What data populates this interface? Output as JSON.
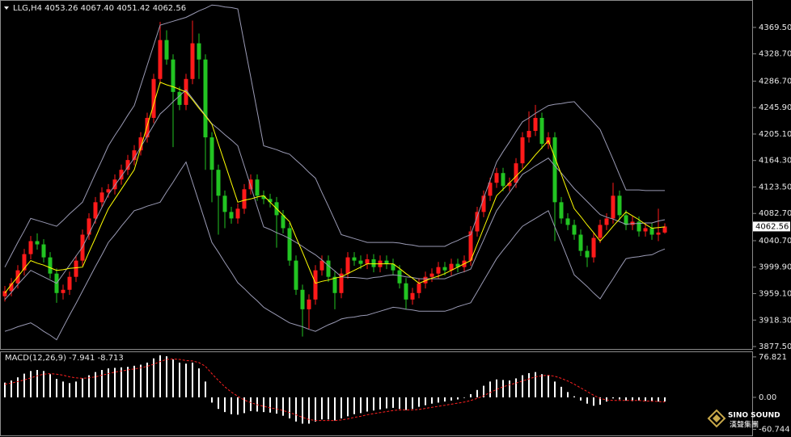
{
  "chart_data": [
    {
      "type": "candlestick",
      "title": "LLG,H4 4053.26 4067.40 4051.42 4062.56",
      "up_color": "#ff1a1a",
      "down_color": "#22c422",
      "ylim": [
        3873.8,
        4410.5
      ],
      "yticks": [
        {
          "value": 3877.5,
          "label": "3877.50"
        },
        {
          "value": 3918.3,
          "label": "3918.30"
        },
        {
          "value": 3959.1,
          "label": "3959.10"
        },
        {
          "value": 3999.9,
          "label": "3999.90"
        },
        {
          "value": 4040.7,
          "label": "4040.70"
        },
        {
          "value": 4082.7,
          "label": "4082.70"
        },
        {
          "value": 4123.5,
          "label": "4123.50"
        },
        {
          "value": 4164.3,
          "label": "4164.30"
        },
        {
          "value": 4205.1,
          "label": "4205.10"
        },
        {
          "value": 4245.9,
          "label": "4245.90"
        },
        {
          "value": 4286.7,
          "label": "4286.70"
        },
        {
          "value": 4328.7,
          "label": "4328.70"
        },
        {
          "value": 4369.5,
          "label": "4369.50"
        }
      ],
      "last_price": 4062.56,
      "open": [
        3955,
        3963,
        3975,
        3995,
        4020,
        4040,
        4035,
        4015,
        3990,
        3960,
        3965,
        3985,
        4010,
        4050,
        4075,
        4100,
        4115,
        4120,
        4135,
        4150,
        4165,
        4180,
        4200,
        4230,
        4290,
        4350,
        4320,
        4270,
        4250,
        4290,
        4345,
        4320,
        4200,
        4150,
        4110,
        4085,
        4075,
        4090,
        4120,
        4135,
        4110,
        4105,
        4100,
        4080,
        4060,
        4010,
        3965,
        3935,
        3950,
        3995,
        4010,
        3985,
        3960,
        3990,
        4015,
        4010,
        4005,
        4012,
        4000,
        4010,
        4005,
        3995,
        3975,
        3950,
        3960,
        3975,
        3985,
        3990,
        4000,
        3995,
        4005,
        4000,
        4010,
        4055,
        4085,
        4110,
        4130,
        4145,
        4125,
        4130,
        4160,
        4200,
        4210,
        4230,
        4190,
        4200,
        4100,
        4075,
        4065,
        4050,
        4025,
        4015,
        4045,
        4065,
        4075,
        4110,
        4080,
        4065,
        4070,
        4055,
        4060,
        4050,
        4053.26
      ],
      "high": [
        3971,
        3983,
        4003,
        4028,
        4048,
        4052,
        4043,
        4023,
        3998,
        3973,
        3993,
        4018,
        4058,
        4083,
        4108,
        4123,
        4128,
        4143,
        4158,
        4173,
        4188,
        4208,
        4238,
        4298,
        4378,
        4365,
        4328,
        4278,
        4298,
        4380,
        4360,
        4328,
        4208,
        4158,
        4118,
        4093,
        4098,
        4128,
        4143,
        4143,
        4118,
        4113,
        4108,
        4088,
        4068,
        4018,
        3973,
        3958,
        4003,
        4018,
        4018,
        3993,
        3998,
        4023,
        4023,
        4018,
        4020,
        4020,
        4018,
        4018,
        4013,
        4003,
        3983,
        3968,
        3983,
        3993,
        3998,
        4008,
        4008,
        4013,
        4013,
        4018,
        4063,
        4093,
        4118,
        4138,
        4153,
        4153,
        4138,
        4168,
        4208,
        4240,
        4250,
        4238,
        4208,
        4208,
        4108,
        4083,
        4073,
        4058,
        4033,
        4053,
        4073,
        4083,
        4130,
        4118,
        4088,
        4078,
        4078,
        4068,
        4068,
        4090,
        4067.4
      ],
      "low": [
        3947,
        3955,
        3967,
        3987,
        4012,
        4027,
        4007,
        3982,
        3945,
        3950,
        3957,
        3977,
        4002,
        4042,
        4067,
        4092,
        4107,
        4112,
        4127,
        4142,
        4157,
        4172,
        4192,
        4222,
        4282,
        4312,
        4185,
        4242,
        4242,
        4282,
        4290,
        4150,
        4100,
        4050,
        4060,
        4067,
        4067,
        4082,
        4112,
        4102,
        4097,
        4092,
        4030,
        4052,
        4002,
        3957,
        3893,
        3905,
        3942,
        3987,
        3977,
        3935,
        3952,
        3982,
        4002,
        3997,
        3997,
        3992,
        3992,
        3997,
        3987,
        3967,
        3935,
        3942,
        3952,
        3967,
        3977,
        3982,
        3987,
        3987,
        3992,
        3992,
        4002,
        4047,
        4077,
        4102,
        4122,
        4117,
        4117,
        4122,
        4152,
        4192,
        4202,
        4182,
        4182,
        4040,
        4067,
        4057,
        4042,
        4017,
        4000,
        4007,
        4037,
        4057,
        4067,
        4072,
        4057,
        4057,
        4047,
        4047,
        4042,
        4040,
        4051.42
      ],
      "close": [
        3963,
        3975,
        3995,
        4020,
        4040,
        4035,
        4015,
        3990,
        3960,
        3965,
        3985,
        4010,
        4050,
        4075,
        4100,
        4115,
        4120,
        4135,
        4150,
        4165,
        4180,
        4200,
        4230,
        4290,
        4350,
        4320,
        4270,
        4250,
        4290,
        4345,
        4320,
        4200,
        4150,
        4110,
        4085,
        4075,
        4090,
        4120,
        4135,
        4110,
        4105,
        4100,
        4080,
        4060,
        4010,
        3965,
        3935,
        3950,
        3995,
        4010,
        3985,
        3960,
        3990,
        4015,
        4010,
        4005,
        4012,
        4000,
        4010,
        4005,
        3995,
        3975,
        3950,
        3960,
        3975,
        3985,
        3990,
        4000,
        3995,
        4005,
        4000,
        4010,
        4055,
        4085,
        4110,
        4130,
        4145,
        4125,
        4130,
        4160,
        4200,
        4210,
        4230,
        4190,
        4200,
        4100,
        4075,
        4065,
        4050,
        4025,
        4015,
        4045,
        4065,
        4075,
        4110,
        4080,
        4065,
        4070,
        4055,
        4060,
        4050,
        4053.26,
        4062.56
      ],
      "overlays": [
        {
          "color": "#9a9ab4",
          "values": [
            4000,
            4019,
            4038,
            4056,
            4075,
            4072,
            4069,
            4066,
            4063,
            4072,
            4082,
            4091,
            4100,
            4122,
            4144,
            4165,
            4187,
            4203,
            4218,
            4234,
            4249,
            4280,
            4311,
            4342,
            4373,
            4376,
            4379,
            4382,
            4385,
            4390,
            4395,
            4399,
            4404,
            4403,
            4401,
            4400,
            4398,
            4345,
            4293,
            4240,
            4187,
            4184,
            4181,
            4177,
            4174,
            4165,
            4156,
            4146,
            4137,
            4115,
            4094,
            4072,
            4050,
            4047,
            4044,
            4041,
            4038,
            4038,
            4038,
            4038,
            4038,
            4037,
            4035,
            4034,
            4032,
            4032,
            4032,
            4032,
            4032,
            4037,
            4041,
            4046,
            4050,
            4078,
            4106,
            4134,
            4162,
            4178,
            4193,
            4209,
            4224,
            4230,
            4237,
            4243,
            4249,
            4251,
            4252,
            4254,
            4255,
            4244,
            4234,
            4223,
            4212,
            4189,
            4166,
            4142,
            4119,
            4119,
            4119,
            4118,
            4118,
            4118,
            4118
          ]
        },
        {
          "color": "#9a9ab4",
          "values": [
            3950,
            3961,
            3973,
            3984,
            3995,
            3990,
            3985,
            3980,
            3975,
            3989,
            4003,
            4017,
            4031,
            4051,
            4072,
            4092,
            4112,
            4126,
            4140,
            4154,
            4168,
            4185,
            4202,
            4219,
            4236,
            4245,
            4255,
            4264,
            4273,
            4260,
            4247,
            4234,
            4221,
            4213,
            4204,
            4196,
            4187,
            4156,
            4125,
            4093,
            4062,
            4058,
            4053,
            4049,
            4044,
            4038,
            4032,
            4025,
            4019,
            4011,
            4002,
            3994,
            3985,
            3984,
            3984,
            3983,
            3982,
            3984,
            3985,
            3987,
            3988,
            3987,
            3985,
            3984,
            3982,
            3982,
            3982,
            3982,
            3982,
            3986,
            3990,
            3993,
            3997,
            4020,
            4042,
            4065,
            4087,
            4101,
            4115,
            4129,
            4143,
            4149,
            4156,
            4162,
            4168,
            4156,
            4145,
            4133,
            4121,
            4111,
            4101,
            4091,
            4081,
            4077,
            4074,
            4070,
            4066,
            4067,
            4067,
            4068,
            4068,
            4071,
            4073
          ]
        },
        {
          "color": "#9a9ab4",
          "values": [
            3901,
            3904,
            3908,
            3911,
            3914,
            3908,
            3901,
            3895,
            3888,
            3907,
            3926,
            3944,
            3963,
            3982,
            4001,
            4019,
            4038,
            4050,
            4063,
            4075,
            4087,
            4090,
            4094,
            4097,
            4100,
            4116,
            4131,
            4147,
            4162,
            4131,
            4100,
            4069,
            4038,
            4023,
            4007,
            3992,
            3976,
            3967,
            3957,
            3948,
            3938,
            3932,
            3926,
            3920,
            3914,
            3911,
            3908,
            3904,
            3901,
            3906,
            3911,
            3915,
            3920,
            3922,
            3923,
            3925,
            3926,
            3929,
            3932,
            3935,
            3938,
            3937,
            3935,
            3934,
            3932,
            3932,
            3932,
            3932,
            3932,
            3935,
            3939,
            3942,
            3945,
            3962,
            3979,
            3996,
            4013,
            4026,
            4038,
            4051,
            4063,
            4069,
            4075,
            4081,
            4087,
            4062,
            4038,
            4013,
            3988,
            3979,
            3970,
            3960,
            3951,
            3967,
            3982,
            3998,
            4013,
            4015,
            4016,
            4018,
            4019,
            4024,
            4028
          ]
        },
        {
          "color": "#ffff00",
          "values": [
            3960,
            3973,
            3985,
            3998,
            4010,
            4006,
            4003,
            3999,
            3995,
            3996,
            3998,
            3999,
            4000,
            4023,
            4045,
            4068,
            4090,
            4105,
            4120,
            4135,
            4150,
            4184,
            4218,
            4251,
            4285,
            4281,
            4278,
            4274,
            4270,
            4258,
            4245,
            4233,
            4220,
            4190,
            4160,
            4130,
            4100,
            4103,
            4105,
            4108,
            4110,
            4100,
            4090,
            4080,
            4070,
            4046,
            4023,
            3999,
            3975,
            3978,
            3980,
            3983,
            3985,
            3990,
            3995,
            4000,
            4005,
            4005,
            4005,
            4005,
            4005,
            3998,
            3990,
            3983,
            3975,
            3979,
            3983,
            3986,
            3990,
            3995,
            4000,
            4005,
            4010,
            4035,
            4060,
            4085,
            4110,
            4120,
            4130,
            4140,
            4150,
            4161,
            4173,
            4184,
            4195,
            4169,
            4143,
            4116,
            4090,
            4078,
            4065,
            4053,
            4040,
            4051,
            4063,
            4074,
            4085,
            4079,
            4073,
            4066,
            4060,
            4061,
            4062
          ]
        }
      ]
    },
    {
      "type": "macd",
      "title": "MACD(12,26,9) -7.941 -8.713",
      "ylim": [
        -72.3,
        85.8
      ],
      "yticks": [
        -60.744,
        {
          "value": 0,
          "label": "0.00"
        },
        76.821
      ],
      "histogram": {
        "color": "#ffffff",
        "values": [
          28,
          32,
          38,
          45,
          50,
          52,
          50,
          44,
          35,
          30,
          27,
          30,
          36,
          42,
          48,
          52,
          55,
          56,
          57,
          58,
          60,
          62,
          66,
          74,
          80,
          78,
          72,
          66,
          64,
          66,
          55,
          30,
          -10,
          -22,
          -28,
          -32,
          -33,
          -30,
          -26,
          -27,
          -28,
          -29,
          -31,
          -35,
          -40,
          -46,
          -50,
          -50,
          -46,
          -42,
          -42,
          -44,
          -40,
          -36,
          -32,
          -30,
          -27,
          -25,
          -23,
          -21,
          -20,
          -22,
          -24,
          -22,
          -18,
          -15,
          -12,
          -10,
          -8,
          -6,
          -4,
          -1,
          6,
          14,
          22,
          30,
          34,
          33,
          32,
          36,
          42,
          46,
          48,
          44,
          42,
          30,
          20,
          10,
          2,
          -6,
          -12,
          -16,
          -14,
          -8,
          -2,
          -4,
          -6,
          -7,
          -6,
          -7,
          -8,
          -8,
          -7.941
        ]
      },
      "signal": {
        "color": "#ff2020",
        "dashed": true,
        "values": [
          25,
          27,
          30,
          33,
          37,
          41,
          44,
          45,
          44,
          42,
          39,
          37,
          36,
          37,
          39,
          42,
          45,
          48,
          50,
          52,
          54,
          56,
          59,
          63,
          68,
          72,
          73,
          72,
          70,
          69,
          66,
          59,
          45,
          32,
          20,
          10,
          2,
          -5,
          -10,
          -14,
          -17,
          -20,
          -22,
          -25,
          -29,
          -33,
          -38,
          -42,
          -44,
          -44,
          -44,
          -44,
          -43,
          -41,
          -38,
          -36,
          -33,
          -31,
          -29,
          -27,
          -25,
          -24,
          -24,
          -24,
          -23,
          -21,
          -19,
          -17,
          -15,
          -13,
          -11,
          -9,
          -6,
          -2,
          3,
          9,
          15,
          20,
          24,
          27,
          31,
          35,
          39,
          41,
          42,
          40,
          36,
          31,
          25,
          18,
          11,
          4,
          -2,
          -5,
          -6,
          -6,
          -6,
          -6,
          -6,
          -7,
          -7,
          -8,
          -8.713
        ]
      }
    }
  ],
  "logo": {
    "name": "SINO SOUND",
    "subtitle": "漢聲集團"
  }
}
